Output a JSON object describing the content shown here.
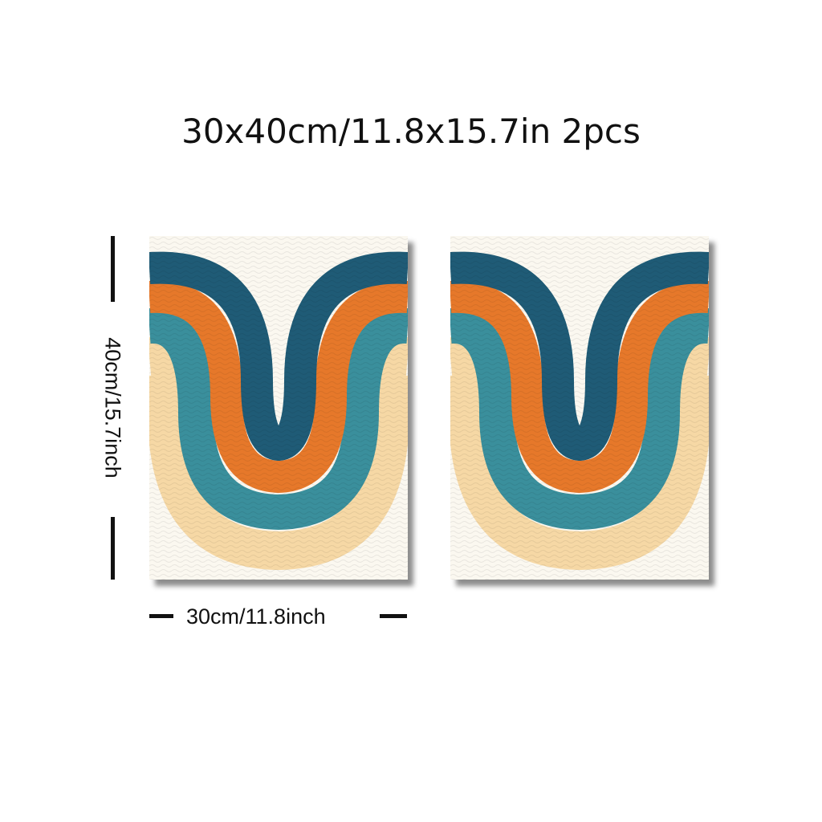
{
  "title": "30x40cm/11.8x15.7in 2pcs",
  "dimensions": {
    "height_label": "40cm/15.7inch",
    "width_label": "30cm/11.8inch"
  },
  "panel_count": 2,
  "colors": {
    "background": "#ffffff",
    "canvas": "#fbf8f0",
    "navy_teal": "#1f5b76",
    "orange": "#e6782a",
    "teal": "#3a8f9c",
    "cream": "#f6d8a5",
    "outline": "#e8dcc0",
    "text": "#111111"
  }
}
